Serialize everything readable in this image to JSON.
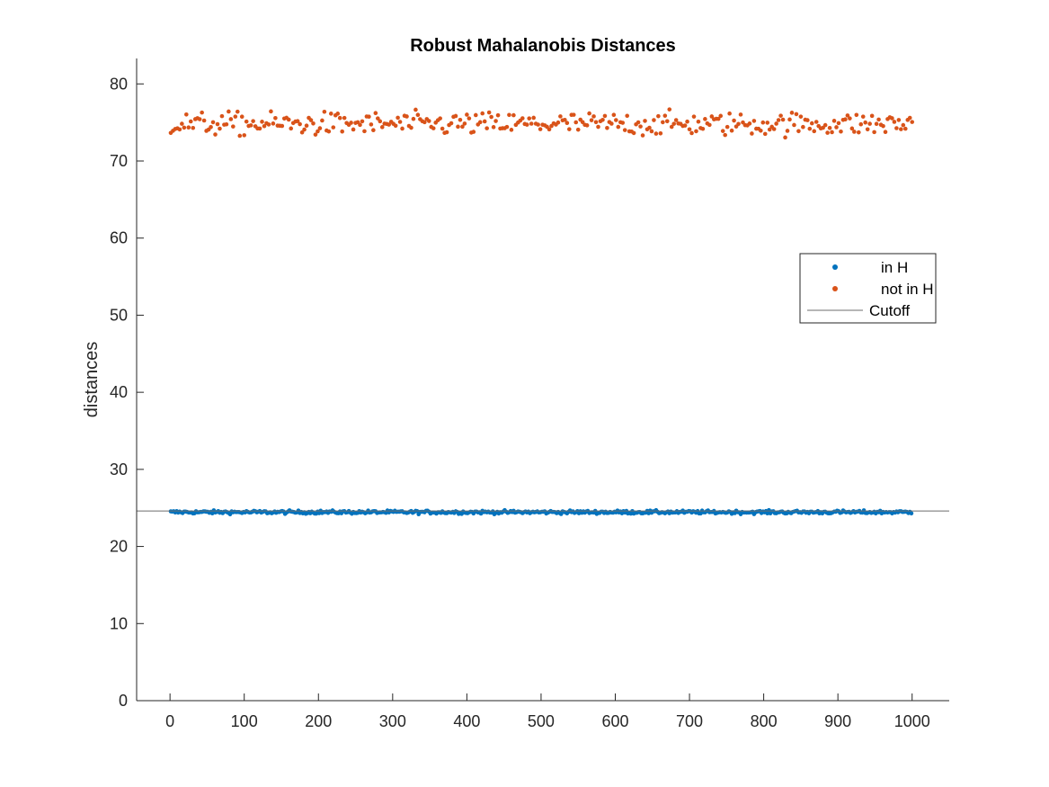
{
  "chart_data": {
    "type": "scatter",
    "title": "Robust Mahalanobis Distances",
    "xlabel": "",
    "ylabel": "distances",
    "xlim": [
      -45,
      1050
    ],
    "ylim": [
      0,
      83.3
    ],
    "xticks": [
      0,
      100,
      200,
      300,
      400,
      500,
      600,
      700,
      800,
      900,
      1000
    ],
    "yticks": [
      0,
      10,
      20,
      30,
      40,
      50,
      60,
      70,
      80
    ],
    "grid": false,
    "legend_position": "right",
    "colors": {
      "in_h": "#0072BD",
      "not_in_h": "#D95319",
      "cutoff": "#6e6e6e"
    },
    "cutoff": 24.6,
    "series": [
      {
        "name": "in H",
        "kind": "points",
        "x_range": [
          1,
          1000
        ],
        "y_mean": 24.45,
        "y_spread": 0.18
      },
      {
        "name": "not in H",
        "kind": "points",
        "x_range": [
          1,
          1000
        ],
        "y_mean": 74.8,
        "y_min": 71.9,
        "y_max": 79.5
      },
      {
        "name": "Cutoff",
        "kind": "line",
        "y": 24.6
      }
    ]
  }
}
